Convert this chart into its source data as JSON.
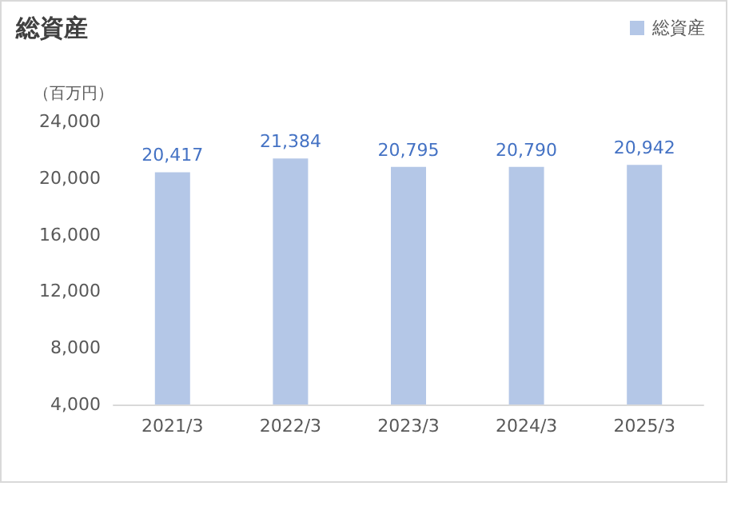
{
  "chart_data": {
    "type": "bar",
    "title": "総資産",
    "ylabel": "（百万円）",
    "categories": [
      "2021/3",
      "2022/3",
      "2023/3",
      "2024/3",
      "2025/3"
    ],
    "series": [
      {
        "name": "総資産",
        "color": "#b4c7e7",
        "values": [
          20417,
          21384,
          20795,
          20790,
          20942
        ]
      }
    ],
    "value_labels": [
      "20,417",
      "21,384",
      "20,795",
      "20,790",
      "20,942"
    ],
    "ylim": [
      4000,
      24000
    ],
    "yticks": [
      {
        "value": 4000,
        "label": "4,000"
      },
      {
        "value": 8000,
        "label": "8,000"
      },
      {
        "value": 12000,
        "label": "12,000"
      },
      {
        "value": 16000,
        "label": "16,000"
      },
      {
        "value": 20000,
        "label": "20,000"
      },
      {
        "value": 24000,
        "label": "24,000"
      }
    ],
    "grid": false,
    "legend": "top right"
  }
}
